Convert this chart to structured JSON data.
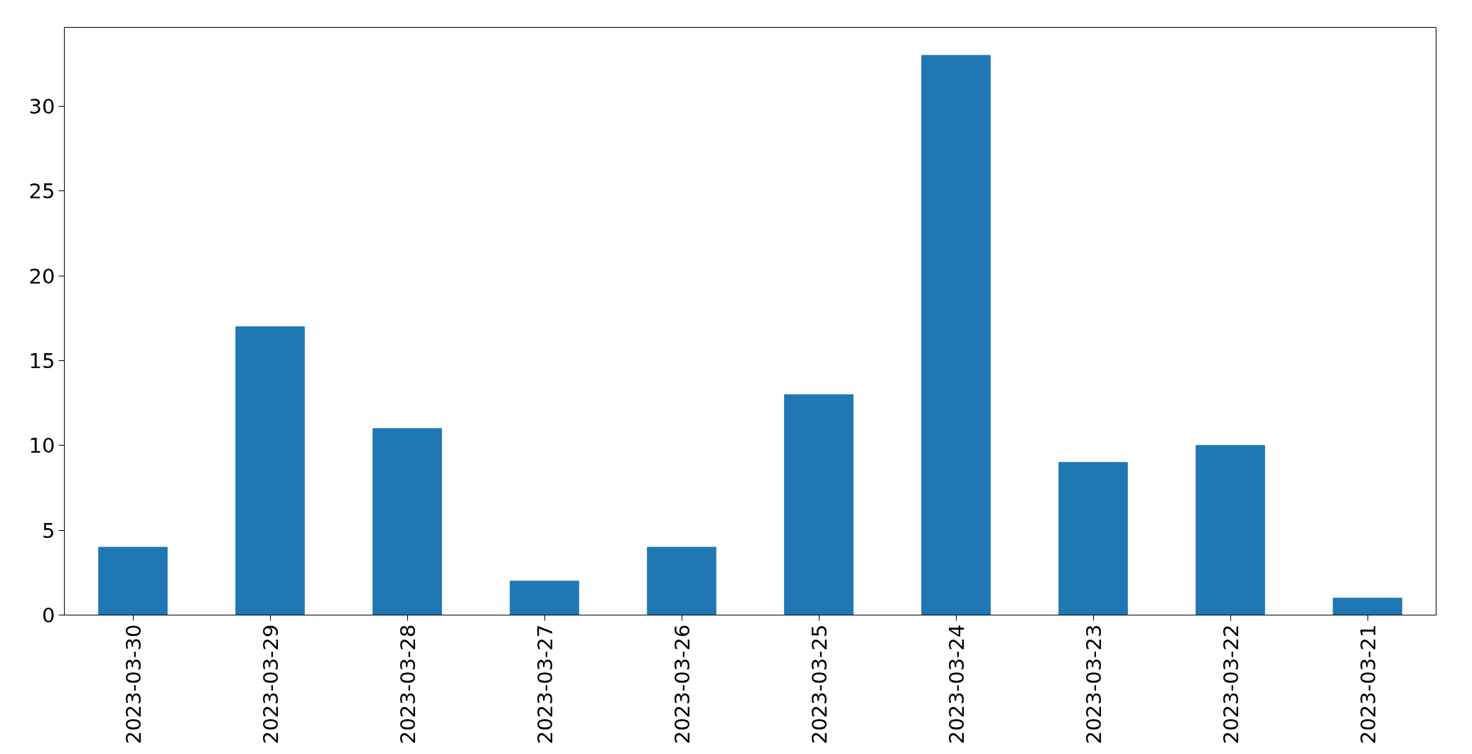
{
  "chart_data": {
    "type": "bar",
    "categories": [
      "2023-03-30",
      "2023-03-29",
      "2023-03-28",
      "2023-03-27",
      "2023-03-26",
      "2023-03-25",
      "2023-03-24",
      "2023-03-23",
      "2023-03-22",
      "2023-03-21"
    ],
    "values": [
      4,
      17,
      11,
      2,
      4,
      13,
      33,
      9,
      10,
      1
    ],
    "color": "#1f77b4",
    "ylim": [
      0,
      34.65
    ],
    "yticks": [
      0,
      5,
      10,
      15,
      20,
      25,
      30
    ],
    "grid": false
  }
}
